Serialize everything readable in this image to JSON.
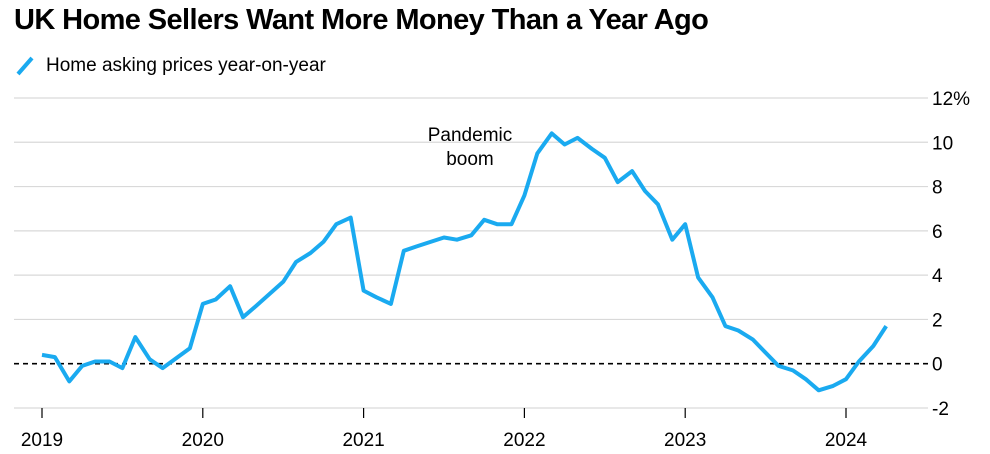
{
  "chart_data": {
    "type": "line",
    "title": "UK Home Sellers Want More Money Than a Year Ago",
    "xlabel": "",
    "ylabel": "",
    "ylim": [
      -2,
      12
    ],
    "xlim": [
      2019.0,
      2024.55
    ],
    "y_ticks": [
      "12%",
      "10",
      "8",
      "6",
      "4",
      "2",
      "0",
      "-2"
    ],
    "y_tick_values": [
      12,
      10,
      8,
      6,
      4,
      2,
      0,
      -2
    ],
    "x_ticks": [
      "2019",
      "2020",
      "2021",
      "2022",
      "2023",
      "2024"
    ],
    "x_tick_values": [
      2019,
      2020,
      2021,
      2022,
      2023,
      2024
    ],
    "grid": true,
    "legend_position": "top-left",
    "colors": {
      "series": "#1aaaf0",
      "grid": "#d9d9d9",
      "zero_line": "#000000"
    },
    "annotations": [
      {
        "text": [
          "Pandemic",
          "boom"
        ],
        "x": 2021.9,
        "y": 10.3
      }
    ],
    "series": [
      {
        "name": "Home asking prices year-on-year",
        "points": [
          [
            2019.0,
            0.4
          ],
          [
            2019.08,
            0.3
          ],
          [
            2019.17,
            -0.8
          ],
          [
            2019.25,
            -0.1
          ],
          [
            2019.33,
            0.1
          ],
          [
            2019.42,
            0.1
          ],
          [
            2019.5,
            -0.2
          ],
          [
            2019.58,
            1.2
          ],
          [
            2019.67,
            0.2
          ],
          [
            2019.75,
            -0.2
          ],
          [
            2019.92,
            0.7
          ],
          [
            2020.0,
            2.7
          ],
          [
            2020.08,
            2.9
          ],
          [
            2020.17,
            3.5
          ],
          [
            2020.25,
            2.1
          ],
          [
            2020.33,
            2.6
          ],
          [
            2020.5,
            3.7
          ],
          [
            2020.58,
            4.6
          ],
          [
            2020.67,
            5.0
          ],
          [
            2020.75,
            5.5
          ],
          [
            2020.83,
            6.3
          ],
          [
            2020.92,
            6.6
          ],
          [
            2021.0,
            3.3
          ],
          [
            2021.08,
            3.0
          ],
          [
            2021.17,
            2.7
          ],
          [
            2021.25,
            5.1
          ],
          [
            2021.33,
            5.3
          ],
          [
            2021.5,
            5.7
          ],
          [
            2021.58,
            5.6
          ],
          [
            2021.67,
            5.8
          ],
          [
            2021.75,
            6.5
          ],
          [
            2021.83,
            6.3
          ],
          [
            2021.92,
            6.3
          ],
          [
            2022.0,
            7.6
          ],
          [
            2022.08,
            9.5
          ],
          [
            2022.17,
            10.4
          ],
          [
            2022.25,
            9.9
          ],
          [
            2022.33,
            10.2
          ],
          [
            2022.42,
            9.7
          ],
          [
            2022.5,
            9.3
          ],
          [
            2022.58,
            8.2
          ],
          [
            2022.67,
            8.7
          ],
          [
            2022.75,
            7.8
          ],
          [
            2022.83,
            7.2
          ],
          [
            2022.92,
            5.6
          ],
          [
            2023.0,
            6.3
          ],
          [
            2023.08,
            3.9
          ],
          [
            2023.17,
            3.0
          ],
          [
            2023.25,
            1.7
          ],
          [
            2023.33,
            1.5
          ],
          [
            2023.42,
            1.1
          ],
          [
            2023.58,
            -0.1
          ],
          [
            2023.67,
            -0.3
          ],
          [
            2023.75,
            -0.7
          ],
          [
            2023.83,
            -1.2
          ],
          [
            2023.92,
            -1.0
          ],
          [
            2024.0,
            -0.7
          ],
          [
            2024.08,
            0.1
          ],
          [
            2024.17,
            0.8
          ],
          [
            2024.25,
            1.7
          ]
        ]
      }
    ]
  }
}
